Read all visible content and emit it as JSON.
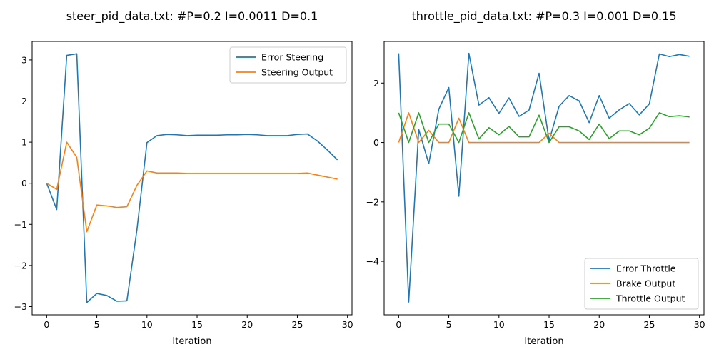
{
  "chart_data": [
    {
      "type": "line",
      "title": "steer_pid_data.txt: #P=0.2 I=0.0011 D=0.1",
      "xlabel": "Iteration",
      "ylabel": "",
      "xlim": [
        -1.45,
        30.45
      ],
      "ylim": [
        -3.2,
        3.45
      ],
      "xticks": [
        0,
        5,
        10,
        15,
        20,
        25,
        30
      ],
      "yticks": [
        -3,
        -2,
        -1,
        0,
        1,
        2,
        3
      ],
      "grid": false,
      "legend_position": "top-right",
      "series": [
        {
          "name": "Error Steering",
          "color": "#1f77b4",
          "x": [
            0,
            1,
            2,
            3,
            4,
            5,
            6,
            7,
            8,
            9,
            10,
            11,
            12,
            13,
            14,
            15,
            16,
            17,
            18,
            19,
            20,
            21,
            22,
            23,
            24,
            25,
            26,
            27,
            28,
            29
          ],
          "values": [
            0.0,
            -0.64,
            3.11,
            3.15,
            -2.9,
            -2.68,
            -2.73,
            -2.87,
            -2.86,
            -1.13,
            0.99,
            1.16,
            1.19,
            1.18,
            1.16,
            1.17,
            1.17,
            1.17,
            1.18,
            1.18,
            1.19,
            1.18,
            1.16,
            1.16,
            1.16,
            1.19,
            1.2,
            1.03,
            0.81,
            0.57
          ]
        },
        {
          "name": "Steering Output",
          "color": "#ff7f0e",
          "x": [
            0,
            1,
            2,
            3,
            4,
            5,
            6,
            7,
            8,
            9,
            10,
            11,
            12,
            13,
            14,
            15,
            16,
            17,
            18,
            19,
            20,
            21,
            22,
            23,
            24,
            25,
            26,
            27,
            28,
            29
          ],
          "values": [
            0.0,
            -0.15,
            1.0,
            0.63,
            -1.18,
            -0.53,
            -0.55,
            -0.59,
            -0.57,
            -0.05,
            0.3,
            0.25,
            0.25,
            0.25,
            0.24,
            0.24,
            0.24,
            0.24,
            0.24,
            0.24,
            0.24,
            0.24,
            0.24,
            0.24,
            0.24,
            0.24,
            0.25,
            0.2,
            0.15,
            0.1
          ]
        }
      ]
    },
    {
      "type": "line",
      "title": "throttle_pid_data.txt: #P=0.3 I=0.001 D=0.15",
      "xlabel": "Iteration",
      "ylabel": "",
      "xlim": [
        -1.45,
        30.45
      ],
      "ylim": [
        -5.8,
        3.4
      ],
      "xticks": [
        0,
        5,
        10,
        15,
        20,
        25,
        30
      ],
      "yticks": [
        -4,
        -2,
        0,
        2
      ],
      "grid": false,
      "legend_position": "bottom-right",
      "series": [
        {
          "name": "Error Throttle",
          "color": "#1f77b4",
          "x": [
            0,
            1,
            2,
            3,
            4,
            5,
            6,
            7,
            8,
            9,
            10,
            11,
            12,
            13,
            14,
            15,
            16,
            17,
            18,
            19,
            20,
            21,
            22,
            23,
            24,
            25,
            26,
            27,
            28,
            29
          ],
          "values": [
            3.0,
            -5.37,
            0.44,
            -0.71,
            1.12,
            1.85,
            -1.81,
            3.0,
            1.26,
            1.51,
            0.98,
            1.5,
            0.88,
            1.09,
            2.33,
            0.06,
            1.22,
            1.58,
            1.4,
            0.67,
            1.58,
            0.82,
            1.1,
            1.31,
            0.93,
            1.3,
            2.98,
            2.89,
            2.96,
            2.9
          ]
        },
        {
          "name": "Brake Output",
          "color": "#ff7f0e",
          "x": [
            0,
            1,
            2,
            3,
            4,
            5,
            6,
            7,
            8,
            9,
            10,
            11,
            12,
            13,
            14,
            15,
            16,
            17,
            18,
            19,
            20,
            21,
            22,
            23,
            24,
            25,
            26,
            27,
            28,
            29
          ],
          "values": [
            0.0,
            1.0,
            0.0,
            0.41,
            0.0,
            0.0,
            0.82,
            0.0,
            0.0,
            0.0,
            0.0,
            0.0,
            0.0,
            0.0,
            0.0,
            0.31,
            0.0,
            0.0,
            0.0,
            0.0,
            0.0,
            0.0,
            0.0,
            0.0,
            0.0,
            0.0,
            0.0,
            0.0,
            0.0,
            0.0
          ]
        },
        {
          "name": "Throttle Output",
          "color": "#2ca02c",
          "x": [
            0,
            1,
            2,
            3,
            4,
            5,
            6,
            7,
            8,
            9,
            10,
            11,
            12,
            13,
            14,
            15,
            16,
            17,
            18,
            19,
            20,
            21,
            22,
            23,
            24,
            25,
            26,
            27,
            28,
            29
          ],
          "values": [
            1.0,
            0.0,
            1.0,
            0.0,
            0.62,
            0.62,
            0.0,
            1.0,
            0.12,
            0.5,
            0.26,
            0.54,
            0.19,
            0.19,
            0.92,
            0.0,
            0.53,
            0.53,
            0.39,
            0.1,
            0.62,
            0.13,
            0.39,
            0.39,
            0.26,
            0.48,
            1.0,
            0.87,
            0.9,
            0.86
          ]
        }
      ]
    }
  ]
}
